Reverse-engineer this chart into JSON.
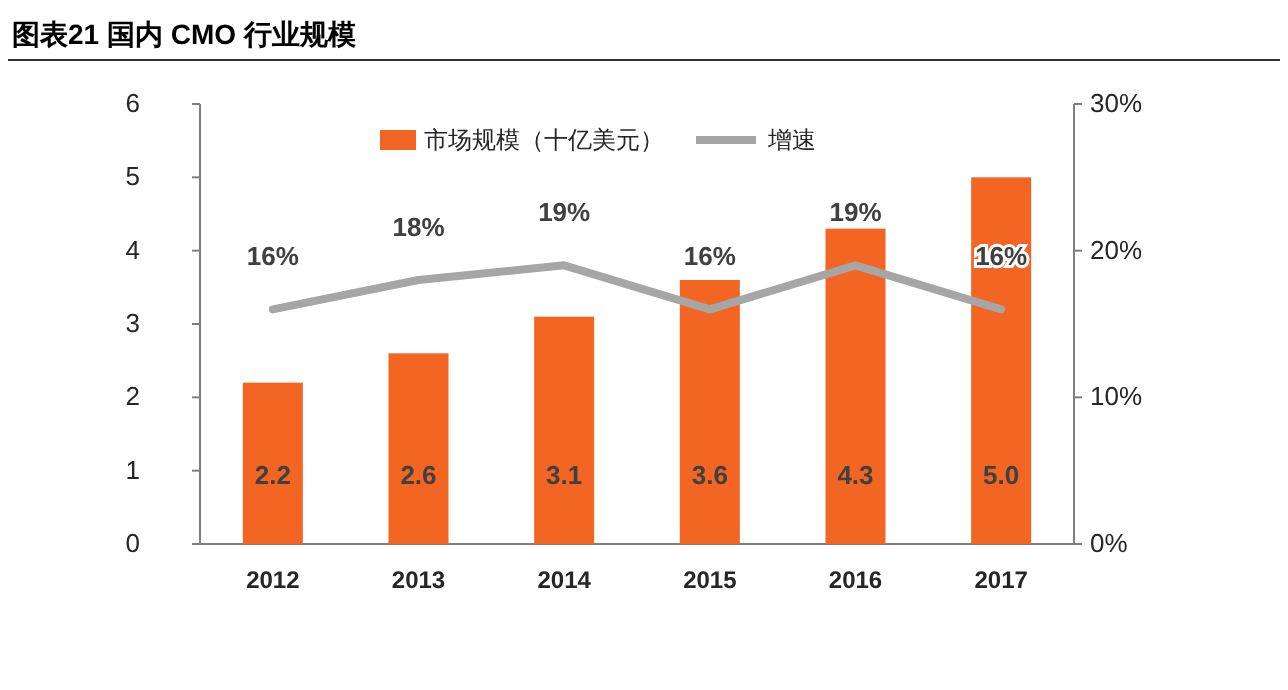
{
  "chart_data": {
    "type": "bar",
    "title": "图表21  国内 CMO 行业规模",
    "categories": [
      "2012",
      "2013",
      "2014",
      "2015",
      "2016",
      "2017"
    ],
    "series": [
      {
        "name": "市场规模（十亿美元）",
        "color": "#f26522",
        "values": [
          2.2,
          2.6,
          3.1,
          3.6,
          4.3,
          5.0
        ],
        "value_labels": [
          "2.2",
          "2.6",
          "3.1",
          "3.6",
          "4.3",
          "5.0"
        ]
      },
      {
        "name": "增速",
        "type": "line",
        "axis": "y2",
        "color": "#a6a6a6",
        "values": [
          16,
          18,
          19,
          16,
          19,
          16
        ],
        "value_labels": [
          "16%",
          "18%",
          "19%",
          "16%",
          "19%",
          "16%"
        ]
      }
    ],
    "ylim": [
      0,
      6
    ],
    "yticks": [
      0,
      1,
      2,
      3,
      4,
      5,
      6
    ],
    "y2lim": [
      0,
      30
    ],
    "y2ticks": [
      {
        "value": 0,
        "label": "0%"
      },
      {
        "value": 10,
        "label": "10%"
      },
      {
        "value": 20,
        "label": "20%"
      },
      {
        "value": 30,
        "label": "30%"
      }
    ],
    "legend": "top",
    "marker": "none",
    "line_style": "solid"
  }
}
